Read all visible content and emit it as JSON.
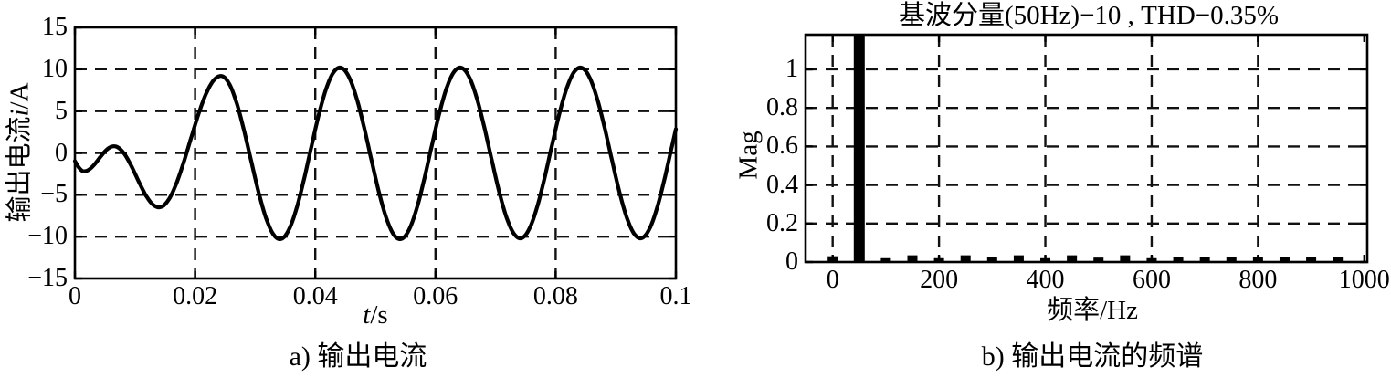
{
  "colors": {
    "line": "#000000",
    "background": "#ffffff",
    "grid": "#111111",
    "bar": "#000000"
  },
  "chart_data": [
    {
      "type": "line",
      "name": "output-current-waveform",
      "caption": "a) 输出电流",
      "xlabel": {
        "symbol": "t",
        "unit": "/s"
      },
      "ylabel": {
        "text_cn": "输出电流",
        "symbol": "i",
        "unit": "/A"
      },
      "xlim": [
        0,
        0.1
      ],
      "ylim": [
        -15,
        15
      ],
      "xticks": [
        0,
        0.02,
        0.04,
        0.06,
        0.08,
        0.1
      ],
      "xtick_labels": [
        "0",
        "0.02",
        "0.04",
        "0.06",
        "0.08",
        "0.1"
      ],
      "yticks": [
        -15,
        -10,
        -5,
        0,
        5,
        10,
        15
      ],
      "ytick_labels": [
        "−15",
        "−10",
        "−5",
        "0",
        "5",
        "10",
        "15"
      ],
      "grid_x": [
        0.02,
        0.04,
        0.06,
        0.08
      ],
      "grid_y": [
        -10,
        -5,
        0,
        5,
        10
      ],
      "grid_style": "dashed",
      "series_note": "50 Hz sinusoidal output current with startup transient; steady-state amplitude about 10 A",
      "waveform_extrema_t_s_vs_A": [
        [
          -0.0012,
          -0.1
        ],
        [
          0.0015,
          -2.2
        ],
        [
          0.0065,
          0.8
        ],
        [
          0.014,
          -6.5
        ],
        [
          0.0243,
          9.2
        ],
        [
          0.0341,
          -10.3
        ],
        [
          0.0441,
          10.2
        ],
        [
          0.0541,
          -10.3
        ],
        [
          0.0641,
          10.2
        ],
        [
          0.0741,
          -10.2
        ],
        [
          0.0841,
          10.2
        ],
        [
          0.0941,
          -10.2
        ],
        [
          0.1041,
          10.2
        ]
      ]
    },
    {
      "type": "bar",
      "name": "output-current-spectrum",
      "title": "基波分量(50Hz)−10 , THD−0.35%",
      "caption": "b) 输出电流的频谱",
      "xlabel": "频率/Hz",
      "ylabel": "Mag",
      "xlim": [
        -51,
        1005.5
      ],
      "ylim": [
        0,
        1.18
      ],
      "xticks": [
        0,
        200,
        400,
        600,
        800,
        1000
      ],
      "xtick_labels": [
        "0",
        "200",
        "400",
        "600",
        "800",
        "1000"
      ],
      "yticks": [
        0,
        0.2,
        0.4,
        0.6,
        0.8,
        1
      ],
      "ytick_labels": [
        "0",
        "0.2",
        "0.4",
        "0.6",
        "0.8",
        "1"
      ],
      "grid_x": [
        0,
        200,
        400,
        600,
        800
      ],
      "grid_y": [
        0.2,
        0.4,
        0.6,
        0.8,
        1
      ],
      "grid_style": "dashed",
      "fundamental": {
        "freq_hz": 50,
        "value": 10,
        "clipped_at_axis_top": true
      },
      "thd_percent": 0.35,
      "bars": {
        "freq_hz": [
          0,
          50,
          100,
          150,
          200,
          250,
          300,
          350,
          400,
          450,
          500,
          550,
          600,
          650,
          700,
          750,
          800,
          850,
          900,
          950
        ],
        "values": [
          0.03,
          10,
          0.02,
          0.035,
          0.02,
          0.035,
          0.025,
          0.035,
          0.02,
          0.035,
          0.023,
          0.035,
          0.02,
          0.025,
          0.025,
          0.027,
          0.027,
          0.025,
          0.025,
          0.025
        ]
      }
    }
  ]
}
